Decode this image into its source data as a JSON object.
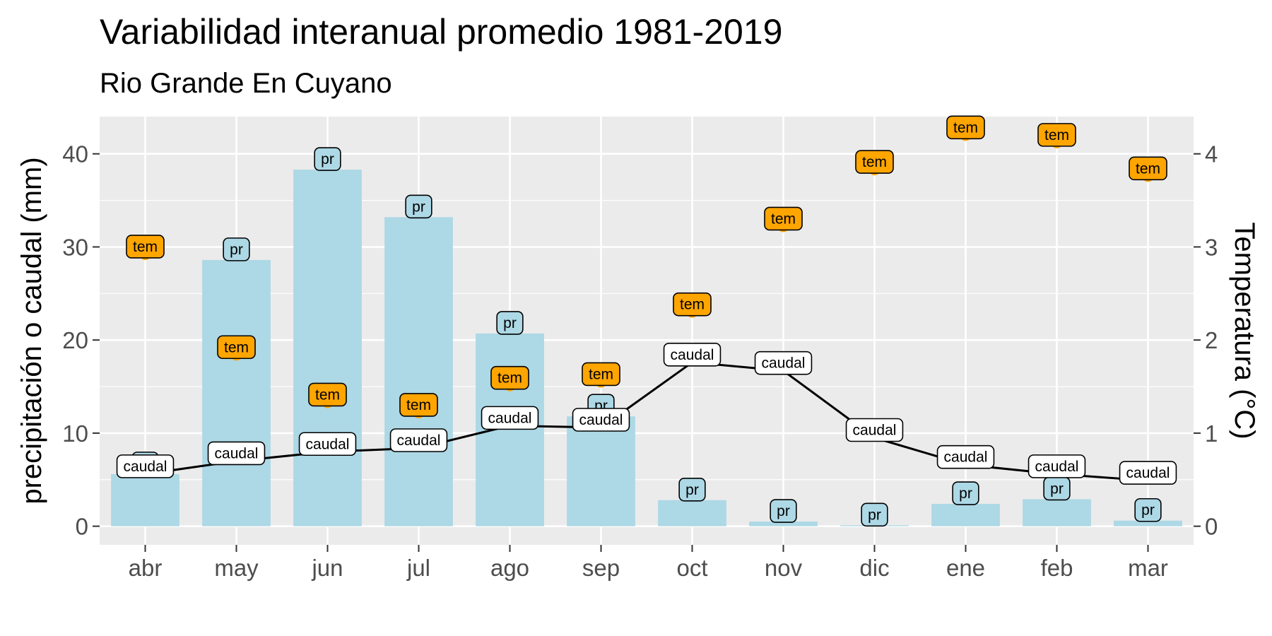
{
  "chart_data": {
    "type": "bar",
    "title": "Variabilidad interanual promedio 1981-2019",
    "subtitle": "Rio Grande En Cuyano",
    "ylabel_left": "precipitación o caudal (mm)",
    "ylabel_right": "Temperatura (°C)",
    "categories": [
      "abr",
      "may",
      "jun",
      "jul",
      "ago",
      "sep",
      "oct",
      "nov",
      "dic",
      "ene",
      "feb",
      "mar"
    ],
    "ylim_left": [
      -2,
      44
    ],
    "yticks_left": [
      0,
      10,
      20,
      30,
      40
    ],
    "ylim_right": [
      -0.2,
      4.4
    ],
    "yticks_right": [
      0,
      1,
      2,
      3,
      4
    ],
    "grid": true,
    "series": [
      {
        "name": "pr",
        "kind": "bar",
        "axis": "left",
        "color": "#ADD8E6",
        "values": [
          5.6,
          28.6,
          38.3,
          33.2,
          20.7,
          11.8,
          2.8,
          0.5,
          0.1,
          2.4,
          2.9,
          0.6
        ]
      },
      {
        "name": "caudal",
        "kind": "line",
        "axis": "left",
        "color": "#000000",
        "values": [
          5.6,
          7.0,
          8.0,
          8.4,
          10.8,
          10.6,
          17.6,
          16.7,
          9.5,
          6.6,
          5.6,
          4.9
        ]
      },
      {
        "name": "tem",
        "kind": "point",
        "axis": "right",
        "color": "#FFA500",
        "values": [
          2.92,
          1.84,
          1.33,
          1.22,
          1.51,
          1.55,
          2.3,
          3.22,
          3.83,
          4.2,
          4.12,
          3.76
        ]
      }
    ]
  },
  "colors": {
    "panel_bg": "#EBEBEB",
    "gridline": "#FFFFFF",
    "bar_fill": "#ADD8E6",
    "point_fill": "#FFA500",
    "line": "#000000",
    "label_fill_caudal": "#FFFFFF"
  }
}
